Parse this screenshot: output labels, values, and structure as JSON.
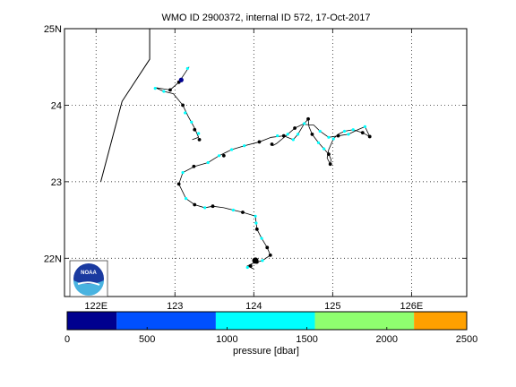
{
  "chart_data": [
    {
      "type": "scatter",
      "title": "WMO ID 2900372, internal ID 572, 17-Oct-2017",
      "xlim": [
        121.6,
        126.7
      ],
      "ylim": [
        21.5,
        25.0
      ],
      "x_ticks": [
        122,
        123,
        124,
        125,
        126
      ],
      "x_tick_labels": [
        "122E",
        "123",
        "124",
        "125",
        "126E"
      ],
      "y_ticks": [
        22,
        23,
        24,
        25
      ],
      "y_tick_labels": [
        "22N",
        "23",
        "24",
        "25N"
      ],
      "grid": true,
      "coastline": [
        [
          122.06,
          23.0
        ],
        [
          122.33,
          24.05
        ],
        [
          122.68,
          24.6
        ],
        [
          122.68,
          25.0
        ]
      ],
      "track": [
        [
          123.18,
          24.5
        ],
        [
          123.05,
          24.3
        ],
        [
          122.94,
          24.2
        ],
        [
          122.75,
          24.23
        ],
        [
          122.86,
          24.18
        ],
        [
          122.98,
          24.15
        ],
        [
          123.1,
          24.0
        ],
        [
          123.17,
          23.85
        ],
        [
          123.25,
          23.7
        ],
        [
          123.3,
          23.58
        ],
        [
          123.22,
          23.55
        ]
      ],
      "track2": [
        [
          124.02,
          22.55
        ],
        [
          124.04,
          22.38
        ],
        [
          124.1,
          22.26
        ],
        [
          124.17,
          22.14
        ],
        [
          124.21,
          22.04
        ],
        [
          124.11,
          21.97
        ],
        [
          124.04,
          21.95
        ],
        [
          123.98,
          21.93
        ],
        [
          123.92,
          21.9
        ],
        [
          124.0,
          21.86
        ]
      ],
      "track3": [
        [
          124.02,
          22.55
        ],
        [
          123.86,
          22.6
        ],
        [
          123.74,
          22.63
        ],
        [
          123.62,
          22.66
        ],
        [
          123.48,
          22.68
        ],
        [
          123.38,
          22.66
        ],
        [
          123.25,
          22.7
        ],
        [
          123.14,
          22.78
        ],
        [
          123.05,
          22.97
        ],
        [
          123.1,
          23.12
        ],
        [
          123.25,
          23.2
        ],
        [
          123.42,
          23.25
        ],
        [
          123.56,
          23.34
        ],
        [
          123.72,
          23.42
        ],
        [
          123.88,
          23.47
        ],
        [
          124.07,
          23.52
        ],
        [
          124.22,
          23.58
        ],
        [
          124.38,
          23.6
        ],
        [
          124.5,
          23.55
        ],
        [
          124.56,
          23.62
        ],
        [
          124.64,
          23.76
        ],
        [
          124.69,
          23.82
        ],
        [
          124.7,
          23.72
        ],
        [
          124.74,
          23.62
        ],
        [
          124.82,
          23.51
        ],
        [
          124.89,
          23.43
        ],
        [
          124.95,
          23.36
        ],
        [
          124.98,
          23.29
        ],
        [
          124.97,
          23.23
        ],
        [
          124.93,
          23.31
        ],
        [
          124.95,
          23.42
        ],
        [
          125.01,
          23.56
        ],
        [
          125.07,
          23.62
        ],
        [
          125.15,
          23.66
        ],
        [
          125.26,
          23.68
        ],
        [
          125.38,
          23.64
        ],
        [
          125.47,
          23.59
        ],
        [
          125.41,
          23.72
        ],
        [
          125.32,
          23.68
        ],
        [
          125.2,
          23.62
        ],
        [
          125.07,
          23.6
        ],
        [
          124.95,
          23.58
        ],
        [
          124.84,
          23.66
        ],
        [
          124.76,
          23.74
        ],
        [
          124.62,
          23.75
        ],
        [
          124.52,
          23.7
        ],
        [
          124.43,
          23.62
        ],
        [
          124.35,
          23.55
        ],
        [
          124.29,
          23.5
        ],
        [
          124.24,
          23.47
        ]
      ],
      "float_points": [
        {
          "x": 123.05,
          "y": 24.3,
          "p": 0
        },
        {
          "x": 123.08,
          "y": 24.33,
          "p": 0
        },
        {
          "x": 122.94,
          "y": 24.2,
          "p": 0
        },
        {
          "x": 123.1,
          "y": 24.0,
          "p": 0
        },
        {
          "x": 123.25,
          "y": 23.68,
          "p": 0
        },
        {
          "x": 123.31,
          "y": 23.55,
          "p": 0
        },
        {
          "x": 123.05,
          "y": 22.97,
          "p": 0
        },
        {
          "x": 123.24,
          "y": 23.2,
          "p": 0
        },
        {
          "x": 124.07,
          "y": 23.52,
          "p": 0
        },
        {
          "x": 124.23,
          "y": 23.49,
          "p": 0
        },
        {
          "x": 124.38,
          "y": 23.6,
          "p": 0
        },
        {
          "x": 124.69,
          "y": 23.82,
          "p": 0
        },
        {
          "x": 124.74,
          "y": 23.62,
          "p": 0
        },
        {
          "x": 124.95,
          "y": 23.36,
          "p": 0
        },
        {
          "x": 124.97,
          "y": 23.23,
          "p": 0
        },
        {
          "x": 125.07,
          "y": 23.6,
          "p": 0
        },
        {
          "x": 125.38,
          "y": 23.64,
          "p": 0
        },
        {
          "x": 125.47,
          "y": 23.59,
          "p": 0
        },
        {
          "x": 124.52,
          "y": 23.7,
          "p": 0
        },
        {
          "x": 123.25,
          "y": 22.7,
          "p": 0
        },
        {
          "x": 123.86,
          "y": 22.6,
          "p": 0
        },
        {
          "x": 124.04,
          "y": 22.38,
          "p": 0
        },
        {
          "x": 124.17,
          "y": 22.14,
          "p": 0
        },
        {
          "x": 124.21,
          "y": 22.04,
          "p": 0
        },
        {
          "x": 124.04,
          "y": 21.95,
          "p": 0
        },
        {
          "x": 123.96,
          "y": 21.9,
          "p": 0
        },
        {
          "x": 123.48,
          "y": 22.68,
          "p": 0
        },
        {
          "x": 123.62,
          "y": 23.34,
          "p": 0
        },
        {
          "x": 123.16,
          "y": 24.48,
          "p": 1200
        },
        {
          "x": 122.86,
          "y": 24.18,
          "p": 1200
        },
        {
          "x": 122.75,
          "y": 24.22,
          "p": 1200
        },
        {
          "x": 123.13,
          "y": 23.9,
          "p": 1200
        },
        {
          "x": 123.21,
          "y": 23.78,
          "p": 1200
        },
        {
          "x": 123.3,
          "y": 23.63,
          "p": 1200
        },
        {
          "x": 123.42,
          "y": 23.25,
          "p": 1200
        },
        {
          "x": 123.72,
          "y": 23.42,
          "p": 1200
        },
        {
          "x": 123.88,
          "y": 23.47,
          "p": 1200
        },
        {
          "x": 124.3,
          "y": 23.6,
          "p": 1200
        },
        {
          "x": 124.5,
          "y": 23.55,
          "p": 1200
        },
        {
          "x": 124.56,
          "y": 23.62,
          "p": 1200
        },
        {
          "x": 124.64,
          "y": 23.76,
          "p": 1200
        },
        {
          "x": 124.82,
          "y": 23.51,
          "p": 1200
        },
        {
          "x": 124.89,
          "y": 23.43,
          "p": 1200
        },
        {
          "x": 125.01,
          "y": 23.56,
          "p": 1200
        },
        {
          "x": 125.15,
          "y": 23.66,
          "p": 1200
        },
        {
          "x": 125.26,
          "y": 23.68,
          "p": 1200
        },
        {
          "x": 125.41,
          "y": 23.72,
          "p": 1200
        },
        {
          "x": 125.2,
          "y": 23.62,
          "p": 1200
        },
        {
          "x": 124.84,
          "y": 23.66,
          "p": 1200
        },
        {
          "x": 124.43,
          "y": 23.62,
          "p": 1200
        },
        {
          "x": 123.1,
          "y": 23.12,
          "p": 1200
        },
        {
          "x": 123.14,
          "y": 22.78,
          "p": 1200
        },
        {
          "x": 123.38,
          "y": 22.66,
          "p": 1200
        },
        {
          "x": 123.74,
          "y": 22.63,
          "p": 1200
        },
        {
          "x": 124.02,
          "y": 22.55,
          "p": 1200
        },
        {
          "x": 124.03,
          "y": 22.46,
          "p": 1200
        },
        {
          "x": 124.1,
          "y": 22.26,
          "p": 1200
        },
        {
          "x": 124.11,
          "y": 21.97,
          "p": 1200
        },
        {
          "x": 123.92,
          "y": 21.88,
          "p": 1200
        },
        {
          "x": 123.56,
          "y": 23.34,
          "p": 1200
        },
        {
          "x": 124.95,
          "y": 23.58,
          "p": 1200
        }
      ],
      "big_marker": {
        "x": 124.02,
        "y": 21.97
      }
    },
    {
      "type": "heatmap",
      "colorbar_ticks": [
        0,
        500,
        1000,
        1500,
        2000,
        2500
      ],
      "colorbar_label": "pressure [dbar]",
      "bins": [
        {
          "min": 0,
          "max": 310,
          "color": "#00008f"
        },
        {
          "min": 310,
          "max": 930,
          "color": "#0050ff"
        },
        {
          "min": 930,
          "max": 1550,
          "color": "#00ffff"
        },
        {
          "min": 1550,
          "max": 2170,
          "color": "#8fff6f"
        },
        {
          "min": 2170,
          "max": 2500,
          "color": "#ffa000"
        }
      ]
    }
  ],
  "logo": {
    "text": "NOAA"
  }
}
